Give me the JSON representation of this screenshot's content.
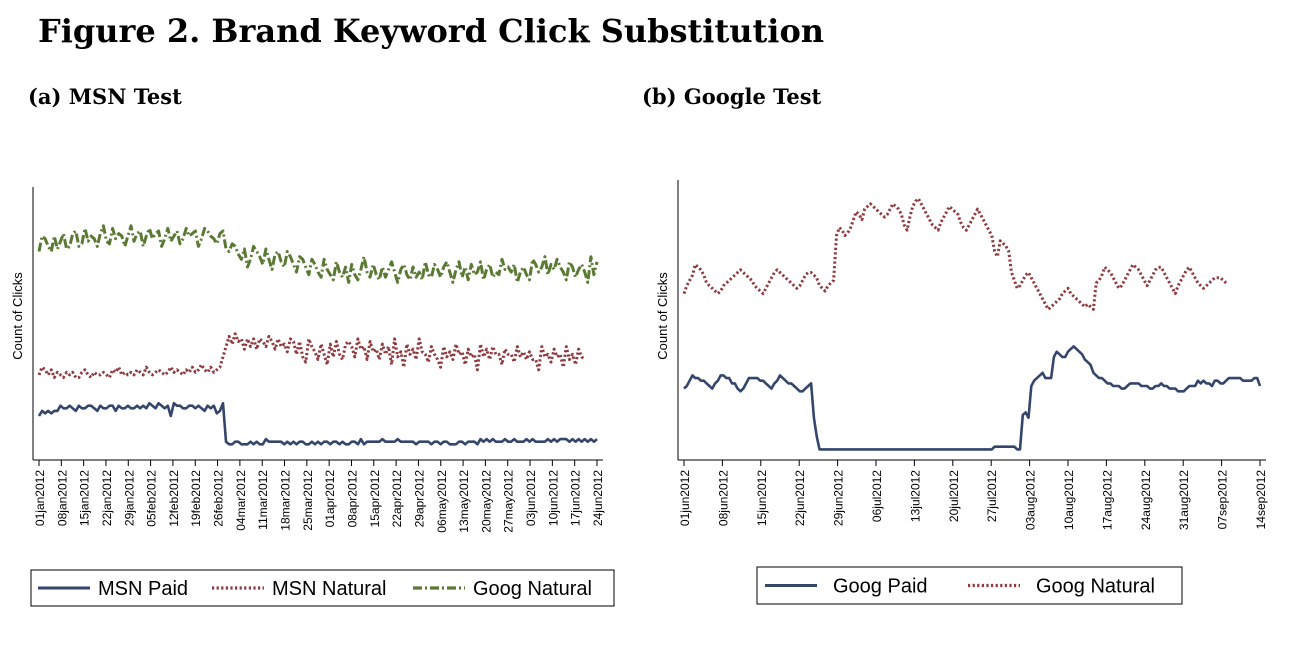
{
  "figure": {
    "title": "Figure 2.  Brand Keyword Click Substitution"
  },
  "colors": {
    "msn_paid": "#34466b",
    "msn_natural": "#8e3a3f",
    "goog_natural": "#5a7a34",
    "goog_paid": "#34466b",
    "axis": "#000000"
  },
  "chart_data": [
    {
      "panel": "(a) MSN Test",
      "type": "line",
      "ylabel": "Count of Clicks",
      "xlabel": "",
      "y_unit": "relative count (unlabeled y-axis, 0-100 scale estimated)",
      "ylim": [
        0,
        100
      ],
      "x_start": "01jan2012",
      "x_end": "25jun2012",
      "tick_labels": [
        "01jan2012",
        "08jan2012",
        "15jan2012",
        "22jan2012",
        "29jan2012",
        "05feb2012",
        "12feb2012",
        "19feb2012",
        "26feb2012",
        "04mar2012",
        "11mar2012",
        "18mar2012",
        "25mar2012",
        "01apr2012",
        "08apr2012",
        "15apr2012",
        "22apr2012",
        "29apr2012",
        "06may2012",
        "13may2012",
        "20may2012",
        "27may2012",
        "03jun2012",
        "10jun2012",
        "17jun2012",
        "24jun2012"
      ],
      "grid": false,
      "legend_position": "bottom",
      "series": [
        {
          "name": "MSN Paid",
          "style": "solid",
          "values": [
            14,
            16,
            15,
            16,
            15,
            16,
            16,
            18,
            17,
            17,
            18,
            17,
            16,
            18,
            17,
            17,
            18,
            18,
            17,
            16,
            18,
            17,
            17,
            18,
            18,
            16,
            18,
            17,
            17,
            18,
            17,
            17,
            18,
            17,
            18,
            17,
            19,
            18,
            17,
            19,
            18,
            17,
            18,
            14,
            19,
            18,
            18,
            17,
            17,
            18,
            18,
            17,
            18,
            17,
            16,
            18,
            17,
            18,
            15,
            16,
            19,
            4,
            3,
            3,
            4,
            4,
            3,
            3,
            3,
            4,
            3,
            4,
            3,
            3,
            5,
            4,
            4,
            4,
            4,
            4,
            3,
            4,
            3,
            4,
            3,
            4,
            4,
            3,
            3,
            4,
            3,
            4,
            3,
            4,
            4,
            3,
            4,
            4,
            3,
            4,
            3,
            3,
            4,
            4,
            3,
            5,
            3,
            4,
            4,
            4,
            4,
            4,
            5,
            4,
            4,
            4,
            4,
            5,
            4,
            4,
            4,
            4,
            4,
            3,
            4,
            4,
            4,
            4,
            3,
            4,
            4,
            3,
            4,
            4,
            3,
            3,
            3,
            4,
            4,
            3,
            4,
            4,
            4,
            3,
            5,
            4,
            5,
            4,
            5,
            4,
            4,
            4,
            5,
            4,
            4,
            5,
            4,
            4,
            4,
            5,
            4,
            5,
            4,
            4,
            4,
            4,
            5,
            4,
            5,
            4,
            5,
            5,
            5,
            4,
            5,
            4,
            5,
            4,
            5,
            4,
            5,
            4,
            5
          ]
        },
        {
          "name": "MSN Natural",
          "style": "dotted",
          "values": [
            30,
            33,
            32,
            30,
            32,
            29,
            31,
            30,
            29,
            31,
            30,
            31,
            29,
            29,
            31,
            32,
            30,
            29,
            31,
            30,
            30,
            31,
            30,
            29,
            32,
            31,
            33,
            30,
            31,
            30,
            31,
            30,
            32,
            31,
            30,
            33,
            31,
            30,
            31,
            32,
            31,
            30,
            31,
            33,
            31,
            32,
            31,
            30,
            32,
            31,
            33,
            31,
            32,
            34,
            32,
            31,
            33,
            31,
            32,
            33,
            37,
            41,
            45,
            42,
            46,
            43,
            44,
            40,
            44,
            41,
            44,
            40,
            44,
            43,
            41,
            45,
            43,
            40,
            44,
            41,
            42,
            39,
            44,
            43,
            38,
            43,
            37,
            35,
            44,
            41,
            39,
            36,
            42,
            38,
            34,
            42,
            37,
            43,
            38,
            36,
            42,
            43,
            41,
            37,
            44,
            40,
            41,
            36,
            43,
            39,
            40,
            36,
            42,
            38,
            41,
            34,
            44,
            37,
            39,
            33,
            42,
            38,
            40,
            36,
            44,
            39,
            38,
            35,
            41,
            38,
            36,
            33,
            41,
            37,
            39,
            36,
            42,
            38,
            39,
            34,
            40,
            37,
            38,
            32,
            42,
            37,
            40,
            36,
            41,
            38,
            38,
            34,
            40,
            38,
            38,
            35,
            41,
            37,
            39,
            36,
            39,
            36,
            36,
            32,
            41,
            37,
            38,
            35,
            40,
            37,
            38,
            33,
            41,
            36,
            38,
            34,
            40,
            37,
            36
          ]
        },
        {
          "name": "Goog Natural",
          "style": "dashdot",
          "values": [
            78,
            84,
            83,
            80,
            78,
            84,
            79,
            82,
            85,
            79,
            80,
            85,
            86,
            80,
            81,
            87,
            82,
            84,
            83,
            80,
            85,
            88,
            82,
            81,
            87,
            83,
            85,
            84,
            80,
            84,
            88,
            82,
            85,
            86,
            80,
            84,
            87,
            83,
            85,
            86,
            80,
            83,
            87,
            82,
            84,
            86,
            81,
            83,
            87,
            84,
            85,
            86,
            80,
            83,
            87,
            86,
            84,
            83,
            81,
            85,
            86,
            79,
            78,
            81,
            80,
            77,
            75,
            79,
            72,
            75,
            80,
            78,
            76,
            73,
            79,
            75,
            71,
            77,
            78,
            74,
            72,
            78,
            76,
            73,
            70,
            76,
            75,
            72,
            69,
            75,
            73,
            70,
            68,
            75,
            71,
            69,
            67,
            74,
            70,
            68,
            72,
            66,
            73,
            69,
            67,
            71,
            76,
            70,
            68,
            73,
            69,
            67,
            72,
            68,
            71,
            74,
            70,
            66,
            71,
            73,
            69,
            67,
            72,
            68,
            70,
            67,
            74,
            69,
            68,
            73,
            71,
            68,
            72,
            74,
            70,
            66,
            71,
            74,
            68,
            72,
            67,
            73,
            69,
            70,
            74,
            67,
            71,
            73,
            68,
            70,
            69,
            75,
            71,
            72,
            70,
            73,
            66,
            70,
            72,
            69,
            67,
            75,
            73,
            70,
            72,
            76,
            69,
            73,
            71,
            75,
            72,
            70,
            67,
            74,
            72,
            68,
            71,
            73,
            70,
            66,
            76,
            69,
            74
          ]
        }
      ]
    },
    {
      "panel": "(b) Google Test",
      "type": "line",
      "ylabel": "Count of Clicks",
      "xlabel": "",
      "y_unit": "relative count (unlabeled y-axis, 0-100 scale estimated)",
      "ylim": [
        0,
        100
      ],
      "x_start": "01jun2012",
      "x_end": "14sep2012",
      "tick_labels": [
        "01jun2012",
        "08jun2012",
        "15jun2012",
        "22jun2012",
        "29jun2012",
        "06jul2012",
        "13jul2012",
        "20jul2012",
        "27jul2012",
        "03aug2012",
        "10aug2012",
        "17aug2012",
        "24aug2012",
        "31aug2012",
        "07sep2012",
        "14sep2012"
      ],
      "grid": false,
      "legend_position": "bottom",
      "series": [
        {
          "name": "Goog Paid",
          "style": "solid",
          "values": [
            24,
            25,
            27,
            29,
            28,
            28,
            27,
            27,
            26,
            25,
            24,
            26,
            27,
            29,
            29,
            28,
            28,
            26,
            26,
            24,
            23,
            24,
            26,
            28,
            28,
            28,
            28,
            27,
            27,
            26,
            25,
            24,
            26,
            27,
            29,
            28,
            27,
            26,
            26,
            25,
            24,
            23,
            23,
            24,
            25,
            26,
            13,
            6,
            1,
            1,
            1,
            1,
            1,
            1,
            1,
            1,
            1,
            1,
            1,
            1,
            1,
            1,
            1,
            1,
            1,
            1,
            1,
            1,
            1,
            1,
            1,
            1,
            1,
            1,
            1,
            1,
            1,
            1,
            1,
            1,
            1,
            1,
            1,
            1,
            1,
            1,
            1,
            1,
            1,
            1,
            1,
            1,
            1,
            1,
            1,
            1,
            1,
            1,
            1,
            1,
            1,
            1,
            1,
            1,
            1,
            1,
            1,
            1,
            1,
            1,
            2,
            2,
            2,
            2,
            2,
            2,
            2,
            2,
            1,
            1,
            14,
            15,
            13,
            25,
            27,
            28,
            29,
            30,
            28,
            28,
            28,
            36,
            38,
            37,
            36,
            36,
            38,
            39,
            40,
            39,
            38,
            37,
            35,
            34,
            33,
            30,
            29,
            28,
            28,
            27,
            26,
            26,
            25,
            25,
            25,
            24,
            24,
            25,
            26,
            26,
            26,
            26,
            25,
            25,
            25,
            24,
            24,
            25,
            25,
            26,
            25,
            25,
            24,
            24,
            24,
            23,
            23,
            23,
            24,
            25,
            25,
            25,
            27,
            26,
            27,
            26,
            26,
            25,
            27,
            27,
            26,
            26,
            27,
            28,
            28,
            28,
            28,
            28,
            27,
            27,
            27,
            27,
            28,
            28,
            25
          ]
        },
        {
          "name": "Goog Natural",
          "style": "dotted",
          "values": [
            60,
            63,
            65,
            67,
            71,
            70,
            69,
            67,
            64,
            63,
            62,
            61,
            60,
            61,
            63,
            64,
            65,
            66,
            67,
            68,
            69,
            68,
            67,
            66,
            65,
            63,
            62,
            61,
            60,
            62,
            64,
            66,
            68,
            69,
            68,
            67,
            66,
            65,
            64,
            63,
            62,
            63,
            65,
            67,
            68,
            68,
            67,
            66,
            63,
            62,
            61,
            63,
            64,
            65,
            82,
            85,
            84,
            82,
            83,
            85,
            88,
            91,
            90,
            88,
            92,
            93,
            94,
            93,
            92,
            91,
            90,
            89,
            90,
            92,
            94,
            93,
            92,
            90,
            86,
            84,
            89,
            93,
            95,
            96,
            94,
            92,
            90,
            88,
            86,
            85,
            84,
            87,
            89,
            91,
            93,
            92,
            91,
            90,
            87,
            85,
            84,
            86,
            88,
            90,
            92,
            90,
            88,
            86,
            84,
            82,
            76,
            74,
            80,
            79,
            78,
            76,
            68,
            65,
            62,
            63,
            65,
            67,
            68,
            66,
            64,
            62,
            60,
            58,
            56,
            54,
            55,
            56,
            57,
            58,
            60,
            61,
            62,
            60,
            59,
            58,
            57,
            56,
            55,
            56,
            55,
            54,
            64,
            65,
            67,
            70,
            69,
            68,
            66,
            64,
            62,
            63,
            65,
            67,
            69,
            71,
            70,
            69,
            67,
            65,
            63,
            65,
            67,
            69,
            70,
            70,
            68,
            66,
            64,
            62,
            60,
            63,
            65,
            67,
            69,
            70,
            68,
            66,
            64,
            63,
            62,
            63,
            64,
            65,
            66,
            66,
            66,
            65,
            64
          ]
        }
      ]
    }
  ]
}
